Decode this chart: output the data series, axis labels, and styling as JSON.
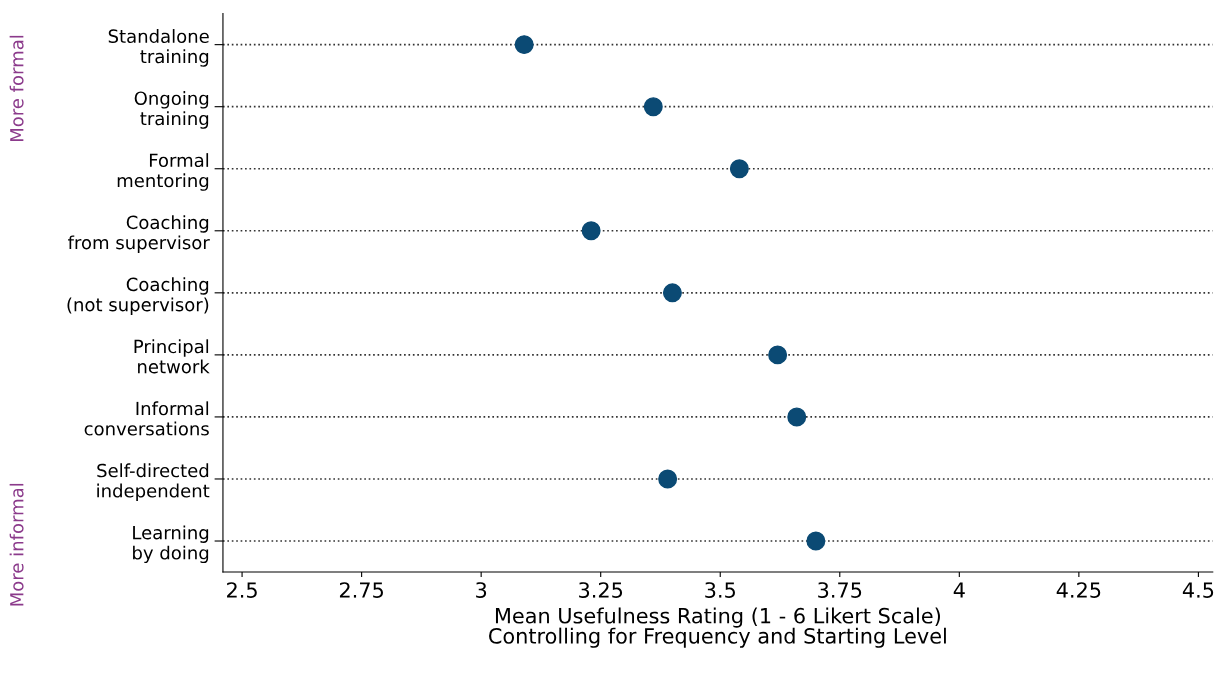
{
  "chart_data": {
    "type": "scatter",
    "orientation": "horizontal",
    "xlabel": "Mean Usefulness Rating (1 - 6 Likert Scale)\nControlling for Frequency and Starting Level",
    "categories": [
      "Standalone\ntraining",
      "Ongoing\ntraining",
      "Formal\nmentoring",
      "Coaching\nfrom supervisor",
      "Coaching\n(not supervisor)",
      "Principal\nnetwork",
      "Informal\nconversations",
      "Self-directed\nindependent",
      "Learning\nby doing"
    ],
    "series": [
      {
        "color": "#0b4a74",
        "values": [
          3.09,
          3.36,
          3.54,
          3.23,
          3.4,
          3.62,
          3.66,
          3.39,
          3.7
        ]
      }
    ],
    "xlim": [
      2.46,
      4.53
    ],
    "xticks": [
      2.5,
      2.75,
      3,
      3.25,
      3.5,
      3.75,
      4,
      4.25,
      4.5
    ],
    "annotations": [
      "More formal",
      "More informal"
    ],
    "grid": "y",
    "line_style": "dotted",
    "marker": "circle",
    "legend": false
  }
}
